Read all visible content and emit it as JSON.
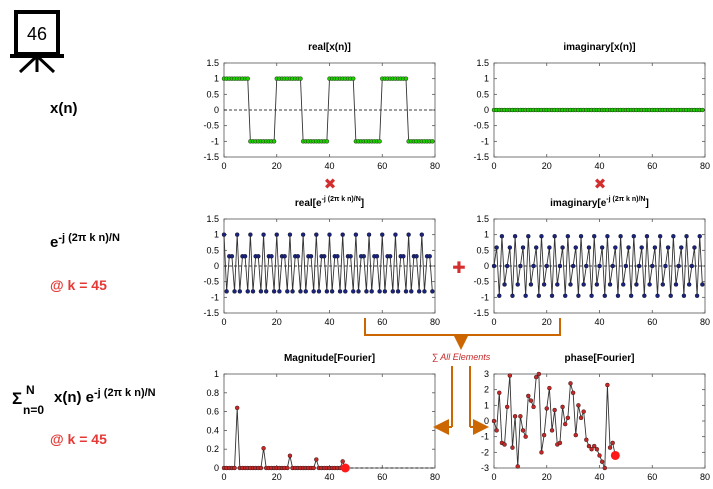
{
  "badge": {
    "number": "46"
  },
  "row_labels": {
    "xn": "x(n)",
    "kernel": {
      "base": "e",
      "exp": "-j (2π k n)/N"
    },
    "kernel_k": "@ k = 45",
    "dft": {
      "sigma": "Σ",
      "upper": "N",
      "lower": "n=0",
      "body": "x(n) e",
      "exp": "-j (2π k n)/N"
    },
    "dft_k": "@ k = 45"
  },
  "operators": {
    "times_symbol": "✖",
    "plus_symbol": "✚",
    "sum_label": "∑ All Elements"
  },
  "colors": {
    "green": "#22cc00",
    "blue": "#1a237e",
    "red": "#c62828",
    "highlight": "#ff1a1a",
    "arrow": "#cc6600",
    "operator_red": "#d32f2f"
  },
  "chart_data": [
    {
      "id": "real_x",
      "type": "line",
      "title": "real[x(n)]",
      "marker_color": "#22cc00",
      "xlim": [
        0,
        80
      ],
      "ylim": [
        -1.5,
        1.5
      ],
      "xticks": [
        "0",
        "20",
        "40",
        "60",
        "80"
      ],
      "yticks": [
        "1.5",
        "1",
        "0.5",
        "0",
        "-0.5",
        "-1",
        "-1.5"
      ],
      "zero_line": "dashed",
      "x_start": 0,
      "values": [
        1,
        1,
        1,
        1,
        1,
        1,
        1,
        1,
        1,
        1,
        -1,
        -1,
        -1,
        -1,
        -1,
        -1,
        -1,
        -1,
        -1,
        -1,
        1,
        1,
        1,
        1,
        1,
        1,
        1,
        1,
        1,
        1,
        -1,
        -1,
        -1,
        -1,
        -1,
        -1,
        -1,
        -1,
        -1,
        -1,
        1,
        1,
        1,
        1,
        1,
        1,
        1,
        1,
        1,
        1,
        -1,
        -1,
        -1,
        -1,
        -1,
        -1,
        -1,
        -1,
        -1,
        -1,
        1,
        1,
        1,
        1,
        1,
        1,
        1,
        1,
        1,
        1,
        -1,
        -1,
        -1,
        -1,
        -1,
        -1,
        -1,
        -1,
        -1,
        -1
      ]
    },
    {
      "id": "imag_x",
      "type": "line",
      "title": "imaginary[x(n)]",
      "marker_color": "#22cc00",
      "xlim": [
        0,
        80
      ],
      "ylim": [
        -1.5,
        1.5
      ],
      "xticks": [
        "0",
        "20",
        "40",
        "60",
        "80"
      ],
      "yticks": [
        "1.5",
        "1",
        "0.5",
        "0",
        "-0.5",
        "-1",
        "-1.5"
      ],
      "zero_line": "dashed",
      "x_start": 0,
      "values": [
        0,
        0,
        0,
        0,
        0,
        0,
        0,
        0,
        0,
        0,
        0,
        0,
        0,
        0,
        0,
        0,
        0,
        0,
        0,
        0,
        0,
        0,
        0,
        0,
        0,
        0,
        0,
        0,
        0,
        0,
        0,
        0,
        0,
        0,
        0,
        0,
        0,
        0,
        0,
        0,
        0,
        0,
        0,
        0,
        0,
        0,
        0,
        0,
        0,
        0,
        0,
        0,
        0,
        0,
        0,
        0,
        0,
        0,
        0,
        0,
        0,
        0,
        0,
        0,
        0,
        0,
        0,
        0,
        0,
        0,
        0,
        0,
        0,
        0,
        0,
        0,
        0,
        0,
        0,
        0
      ]
    },
    {
      "id": "real_e",
      "type": "line",
      "title": {
        "base": "real[e",
        "exp": "-j (2π k n)/N",
        "close": "]"
      },
      "marker_color": "#1a237e",
      "xlim": [
        0,
        80
      ],
      "ylim": [
        -1.5,
        1.5
      ],
      "xticks": [
        "0",
        "20",
        "40",
        "60",
        "80"
      ],
      "yticks": [
        "1.5",
        "1",
        "0.5",
        "0",
        "-0.5",
        "-1",
        "-1.5"
      ],
      "zero_line": "dashed",
      "x_start": 0,
      "values": [
        1,
        -0.81,
        0.31,
        0.31,
        -0.81,
        1,
        -0.81,
        0.31,
        0.31,
        -0.81,
        1,
        -0.81,
        0.31,
        0.31,
        -0.81,
        1,
        -0.81,
        0.31,
        0.31,
        -0.81,
        1,
        -0.81,
        0.31,
        0.31,
        -0.81,
        1,
        -0.81,
        0.31,
        0.31,
        -0.81,
        1,
        -0.81,
        0.31,
        0.31,
        -0.81,
        1,
        -0.81,
        0.31,
        0.31,
        -0.81,
        1,
        -0.81,
        0.31,
        0.31,
        -0.81,
        1,
        -0.81,
        0.31,
        0.31,
        -0.81,
        1,
        -0.81,
        0.31,
        0.31,
        -0.81,
        1,
        -0.81,
        0.31,
        0.31,
        -0.81,
        1,
        -0.81,
        0.31,
        0.31,
        -0.81,
        1,
        -0.81,
        0.31,
        0.31,
        -0.81,
        1,
        -0.81,
        0.31,
        0.31,
        -0.81,
        1,
        -0.81,
        0.31,
        0.31,
        -0.81
      ]
    },
    {
      "id": "imag_e",
      "type": "line",
      "title": {
        "base": "imaginary[e",
        "exp": "-j (2π k n)/N",
        "close": "]"
      },
      "marker_color": "#1a237e",
      "xlim": [
        0,
        80
      ],
      "ylim": [
        -1.5,
        1.5
      ],
      "xticks": [
        "0",
        "20",
        "40",
        "60",
        "80"
      ],
      "yticks": [
        "1.5",
        "1",
        "0.5",
        "0",
        "-0.5",
        "-1",
        "-1.5"
      ],
      "zero_line": "dashed",
      "x_start": 0,
      "values": [
        0,
        0.59,
        -0.95,
        0.95,
        -0.59,
        0,
        0.59,
        -0.95,
        0.95,
        -0.59,
        0,
        0.59,
        -0.95,
        0.95,
        -0.59,
        0,
        0.59,
        -0.95,
        0.95,
        -0.59,
        0,
        0.59,
        -0.95,
        0.95,
        -0.59,
        0,
        0.59,
        -0.95,
        0.95,
        -0.59,
        0,
        0.59,
        -0.95,
        0.95,
        -0.59,
        0,
        0.59,
        -0.95,
        0.95,
        -0.59,
        0,
        0.59,
        -0.95,
        0.95,
        -0.59,
        0,
        0.59,
        -0.95,
        0.95,
        -0.59,
        0,
        0.59,
        -0.95,
        0.95,
        -0.59,
        0,
        0.59,
        -0.95,
        0.95,
        -0.59,
        0,
        0.59,
        -0.95,
        0.95,
        -0.59,
        0,
        0.59,
        -0.95,
        0.95,
        -0.59,
        0,
        0.59,
        -0.95,
        0.95,
        -0.59,
        0,
        0.59,
        -0.95,
        0.95,
        -0.59
      ]
    },
    {
      "id": "magnitude",
      "type": "line",
      "title": "Magnitude[Fourier]",
      "marker_color": "#c62828",
      "xlim": [
        0,
        80
      ],
      "ylim": [
        0,
        1
      ],
      "xticks": [
        "0",
        "20",
        "40",
        "60",
        "80"
      ],
      "yticks": [
        "1",
        "0.8",
        "0.6",
        "0.4",
        "0.2",
        "0"
      ],
      "zero_line": "none",
      "x_start": 0,
      "values": [
        0,
        0,
        0,
        0,
        0,
        0.64,
        0,
        0,
        0,
        0,
        0,
        0,
        0,
        0,
        0,
        0.21,
        0,
        0,
        0,
        0,
        0,
        0,
        0,
        0,
        0,
        0.13,
        0,
        0,
        0,
        0,
        0,
        0,
        0,
        0,
        0,
        0.09,
        0,
        0,
        0,
        0,
        0,
        0,
        0,
        0,
        0,
        0.07,
        0
      ],
      "highlight_index": 46,
      "trailing_dashed": true
    },
    {
      "id": "phase",
      "type": "line",
      "title": "phase[Fourier]",
      "marker_color": "#c62828",
      "xlim": [
        0,
        80
      ],
      "ylim": [
        -3,
        3
      ],
      "xticks": [
        "0",
        "20",
        "40",
        "60",
        "80"
      ],
      "yticks": [
        "3",
        "2",
        "1",
        "0",
        "-1",
        "-2",
        "-3"
      ],
      "zero_line": "none",
      "x_start": 0,
      "values": [
        0,
        -0.6,
        1.8,
        -1.4,
        -1.5,
        0.9,
        2.9,
        -1.7,
        0.3,
        -2.9,
        0.3,
        -0.6,
        -1.0,
        1.6,
        1.3,
        0.9,
        2.8,
        3.0,
        -2.0,
        -0.9,
        0.8,
        2.1,
        -0.6,
        0.7,
        -1.5,
        -1.4,
        0.9,
        -0.2,
        0.2,
        2.4,
        1.8,
        -0.9,
        1.0,
        0.2,
        0.6,
        -1.2,
        -1.6,
        -1.8,
        -1.6,
        -1.8,
        -2.2,
        -2.6,
        -3.0,
        2.3,
        -1.7,
        -1.4,
        -2.2
      ],
      "highlight_index": 46,
      "trailing_dashed": false
    }
  ]
}
